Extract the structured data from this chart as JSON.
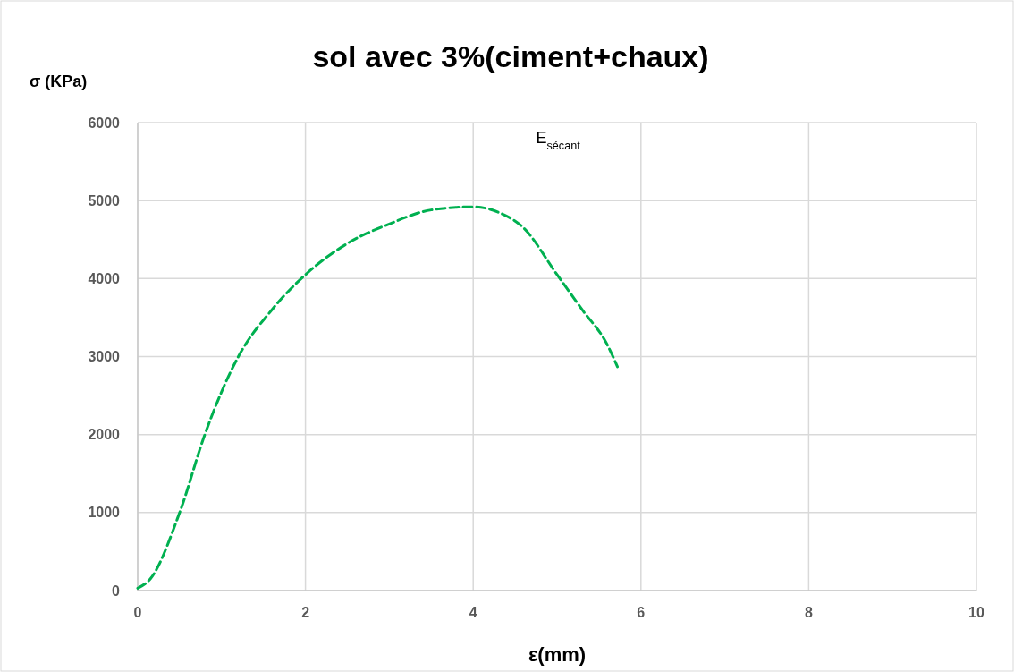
{
  "chart_data": {
    "type": "line",
    "title": "sol avec 3%(ciment+chaux)",
    "xlabel": "ε(mm)",
    "ylabel": "σ (KPa)",
    "annotations": [
      "E$_{sécant}$"
    ],
    "x": [
      0,
      0.15,
      0.5,
      0.8,
      1.2,
      1.6,
      2,
      2.5,
      3,
      3.5,
      4,
      4.3,
      4.6,
      5,
      5.3,
      5.6,
      5.72
    ],
    "series": [
      {
        "color": "#00b050",
        "values": [
          30,
          150,
          1000,
          2000,
          3000,
          3600,
          4050,
          4450,
          4700,
          4880,
          4920,
          4850,
          4650,
          4050,
          3600,
          3150,
          2870
        ]
      }
    ],
    "xlim": [
      0,
      10
    ],
    "xticks": [
      0,
      2,
      4,
      6,
      8,
      10
    ],
    "ylim": [
      0,
      6000
    ],
    "yticks": [
      0,
      1000,
      2000,
      3000,
      4000,
      5000,
      6000
    ],
    "grid": true,
    "line_style": "dashed",
    "marker": "none"
  }
}
